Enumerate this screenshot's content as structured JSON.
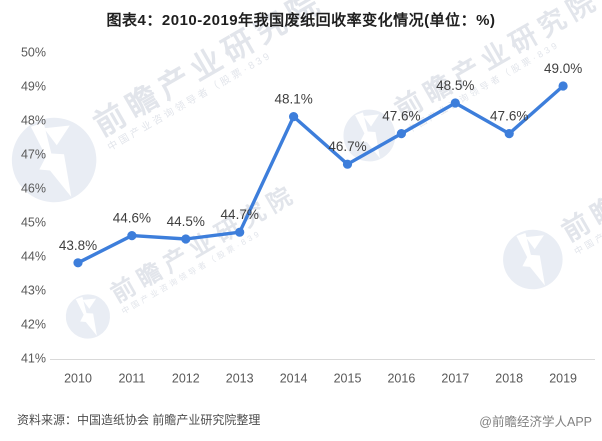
{
  "chart_data": {
    "type": "line",
    "title": "图表4：2010-2019年我国废纸回收率变化情况(单位：%)",
    "categories": [
      "2010",
      "2011",
      "2012",
      "2013",
      "2014",
      "2015",
      "2016",
      "2017",
      "2018",
      "2019"
    ],
    "series": [
      {
        "name": "废纸回收率",
        "values": [
          43.8,
          44.6,
          44.5,
          44.7,
          48.1,
          46.7,
          47.6,
          48.5,
          47.6,
          49.0
        ],
        "point_labels": [
          "43.8%",
          "44.6%",
          "44.5%",
          "44.7%",
          "48.1%",
          "46.7%",
          "47.6%",
          "48.5%",
          "47.6%",
          "49.0%"
        ]
      }
    ],
    "xlabel": "",
    "ylabel": "",
    "ylim": [
      41,
      50
    ],
    "ytick_step": 1,
    "ytick_suffix": "%",
    "y_tick_labels": [
      "41%",
      "42%",
      "43%",
      "44%",
      "45%",
      "46%",
      "47%",
      "48%",
      "49%",
      "50%"
    ],
    "grid": false,
    "legend": "none",
    "data_labels_visible": true
  },
  "footer": {
    "source": "资料来源：中国造纸协会 前瞻产业研究院整理",
    "credit": "@前瞻经济学人APP"
  },
  "watermark": {
    "big_text": "前瞻产业研究院",
    "small_text": "中国产业咨询领导者（股票·839",
    "logo": "qianzhan-logo"
  },
  "colors": {
    "background": "#ffffff",
    "line": "#3d7edb",
    "title": "#1f1f1f",
    "axis_text": "#595959",
    "data_label": "#3f3f3f",
    "axis_line": "#d9d9d9",
    "watermark_text": "#e2e5eb",
    "watermark_logo": "#e9edf4",
    "footer_left": "#4d4d4d",
    "footer_right": "#808080"
  }
}
